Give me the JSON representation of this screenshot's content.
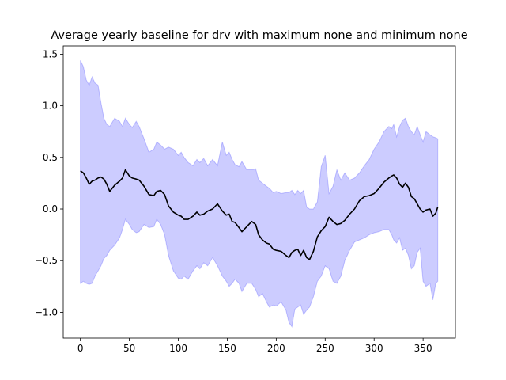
{
  "chart_data": {
    "type": "line",
    "title": "Average yearly baseline for drv with maximum none and minimum none",
    "xlabel": "",
    "ylabel": "",
    "xlim": [
      -17.5,
      383.0
    ],
    "ylim": [
      -1.25,
      1.58
    ],
    "x_ticks": [
      0,
      50,
      100,
      150,
      200,
      250,
      300,
      350
    ],
    "y_ticks": [
      -1.0,
      -0.5,
      0.0,
      0.5,
      1.0,
      1.5
    ],
    "y_tick_labels": [
      "−1.0",
      "−0.5",
      "0.0",
      "0.5",
      "1.0",
      "1.5"
    ],
    "grid": false,
    "legend": "none",
    "series": [
      {
        "role": "mean",
        "color": "#000000",
        "x": [
          0,
          3,
          6,
          9,
          12,
          15,
          18,
          21,
          24,
          27,
          30,
          35,
          40,
          43,
          46,
          50,
          53,
          57,
          60,
          65,
          70,
          75,
          78,
          82,
          86,
          90,
          95,
          100,
          103,
          106,
          110,
          115,
          119,
          122,
          126,
          130,
          135,
          140,
          145,
          149,
          152,
          155,
          158,
          162,
          165,
          170,
          175,
          179,
          182,
          186,
          190,
          193,
          197,
          200,
          205,
          210,
          213,
          216,
          219,
          222,
          225,
          228,
          231,
          234,
          238,
          242,
          246,
          250,
          254,
          258,
          262,
          266,
          270,
          275,
          280,
          285,
          290,
          295,
          300,
          305,
          310,
          315,
          318,
          320,
          323,
          326,
          329,
          332,
          335,
          338,
          341,
          344,
          347,
          350,
          353,
          357,
          360,
          363,
          365
        ],
        "y": [
          0.37,
          0.35,
          0.3,
          0.24,
          0.27,
          0.28,
          0.3,
          0.31,
          0.29,
          0.24,
          0.17,
          0.23,
          0.27,
          0.3,
          0.38,
          0.32,
          0.3,
          0.29,
          0.28,
          0.22,
          0.14,
          0.13,
          0.17,
          0.18,
          0.14,
          0.03,
          -0.03,
          -0.06,
          -0.07,
          -0.1,
          -0.1,
          -0.07,
          -0.03,
          -0.06,
          -0.05,
          -0.02,
          0.0,
          0.05,
          -0.02,
          -0.06,
          -0.05,
          -0.12,
          -0.13,
          -0.18,
          -0.22,
          -0.17,
          -0.12,
          -0.15,
          -0.25,
          -0.3,
          -0.33,
          -0.34,
          -0.39,
          -0.4,
          -0.41,
          -0.45,
          -0.47,
          -0.42,
          -0.4,
          -0.39,
          -0.45,
          -0.4,
          -0.47,
          -0.49,
          -0.41,
          -0.27,
          -0.21,
          -0.17,
          -0.08,
          -0.12,
          -0.15,
          -0.14,
          -0.11,
          -0.05,
          0.0,
          0.08,
          0.12,
          0.13,
          0.15,
          0.2,
          0.26,
          0.3,
          0.32,
          0.33,
          0.3,
          0.24,
          0.21,
          0.25,
          0.21,
          0.12,
          0.1,
          0.05,
          0.0,
          -0.03,
          -0.01,
          0.0,
          -0.07,
          -0.04,
          0.02
        ]
      },
      {
        "role": "upper-bound",
        "color": "#0000ff",
        "opacity": 0.2,
        "x": [
          0,
          3,
          6,
          9,
          12,
          15,
          18,
          21,
          24,
          27,
          30,
          35,
          40,
          43,
          46,
          50,
          53,
          57,
          60,
          65,
          70,
          75,
          78,
          82,
          86,
          90,
          95,
          100,
          103,
          106,
          110,
          115,
          119,
          122,
          126,
          130,
          135,
          140,
          145,
          149,
          152,
          155,
          158,
          162,
          165,
          170,
          175,
          179,
          182,
          186,
          190,
          193,
          197,
          200,
          205,
          210,
          213,
          216,
          219,
          222,
          225,
          228,
          231,
          234,
          238,
          242,
          246,
          250,
          254,
          258,
          262,
          266,
          270,
          275,
          280,
          285,
          290,
          295,
          300,
          305,
          310,
          315,
          318,
          320,
          323,
          326,
          329,
          332,
          335,
          338,
          341,
          344,
          347,
          350,
          353,
          357,
          360,
          363,
          365
        ],
        "y": [
          1.44,
          1.38,
          1.25,
          1.2,
          1.28,
          1.22,
          1.2,
          1.03,
          0.88,
          0.82,
          0.8,
          0.88,
          0.85,
          0.8,
          0.88,
          0.82,
          0.79,
          0.85,
          0.8,
          0.68,
          0.55,
          0.58,
          0.65,
          0.62,
          0.58,
          0.6,
          0.58,
          0.52,
          0.55,
          0.5,
          0.45,
          0.42,
          0.48,
          0.45,
          0.49,
          0.42,
          0.48,
          0.42,
          0.65,
          0.52,
          0.55,
          0.48,
          0.43,
          0.41,
          0.46,
          0.38,
          0.38,
          0.39,
          0.28,
          0.25,
          0.22,
          0.2,
          0.16,
          0.17,
          0.15,
          0.16,
          0.16,
          0.18,
          0.14,
          0.18,
          0.15,
          0.18,
          0.02,
          0.0,
          0.0,
          0.07,
          0.41,
          0.52,
          0.15,
          0.22,
          0.38,
          0.28,
          0.35,
          0.28,
          0.3,
          0.35,
          0.42,
          0.48,
          0.58,
          0.65,
          0.75,
          0.8,
          0.78,
          0.82,
          0.7,
          0.8,
          0.86,
          0.88,
          0.8,
          0.75,
          0.72,
          0.8,
          0.72,
          0.65,
          0.75,
          0.72,
          0.7,
          0.69,
          0.68
        ]
      },
      {
        "role": "lower-bound",
        "color": "#0000ff",
        "opacity": 0.2,
        "x": [
          0,
          3,
          6,
          9,
          12,
          15,
          18,
          21,
          24,
          27,
          30,
          35,
          40,
          43,
          46,
          50,
          53,
          57,
          60,
          65,
          70,
          75,
          78,
          82,
          86,
          90,
          95,
          100,
          103,
          106,
          110,
          115,
          119,
          122,
          126,
          130,
          135,
          140,
          145,
          149,
          152,
          155,
          158,
          162,
          165,
          170,
          175,
          179,
          182,
          186,
          190,
          193,
          197,
          200,
          205,
          210,
          213,
          216,
          219,
          222,
          225,
          228,
          231,
          234,
          238,
          242,
          246,
          250,
          254,
          258,
          262,
          266,
          270,
          275,
          280,
          285,
          290,
          295,
          300,
          305,
          310,
          315,
          318,
          320,
          323,
          326,
          329,
          332,
          335,
          338,
          341,
          344,
          347,
          350,
          353,
          357,
          360,
          363,
          365
        ],
        "y": [
          -0.72,
          -0.7,
          -0.72,
          -0.73,
          -0.72,
          -0.65,
          -0.6,
          -0.55,
          -0.48,
          -0.45,
          -0.4,
          -0.35,
          -0.28,
          -0.2,
          -0.1,
          -0.15,
          -0.2,
          -0.23,
          -0.22,
          -0.15,
          -0.18,
          -0.17,
          -0.1,
          -0.15,
          -0.25,
          -0.45,
          -0.6,
          -0.67,
          -0.68,
          -0.65,
          -0.68,
          -0.6,
          -0.55,
          -0.58,
          -0.52,
          -0.55,
          -0.47,
          -0.55,
          -0.65,
          -0.7,
          -0.75,
          -0.72,
          -0.68,
          -0.72,
          -0.8,
          -0.72,
          -0.72,
          -0.78,
          -0.85,
          -0.82,
          -0.9,
          -0.95,
          -0.93,
          -0.94,
          -0.9,
          -0.98,
          -1.1,
          -1.14,
          -0.97,
          -0.95,
          -0.93,
          -1.02,
          -0.98,
          -0.95,
          -0.85,
          -0.7,
          -0.65,
          -0.55,
          -0.58,
          -0.7,
          -0.72,
          -0.65,
          -0.5,
          -0.4,
          -0.32,
          -0.3,
          -0.28,
          -0.25,
          -0.23,
          -0.22,
          -0.2,
          -0.2,
          -0.25,
          -0.3,
          -0.33,
          -0.28,
          -0.4,
          -0.38,
          -0.45,
          -0.58,
          -0.55,
          -0.42,
          -0.38,
          -0.7,
          -0.75,
          -0.72,
          -0.88,
          -0.72,
          -0.7
        ]
      }
    ]
  }
}
